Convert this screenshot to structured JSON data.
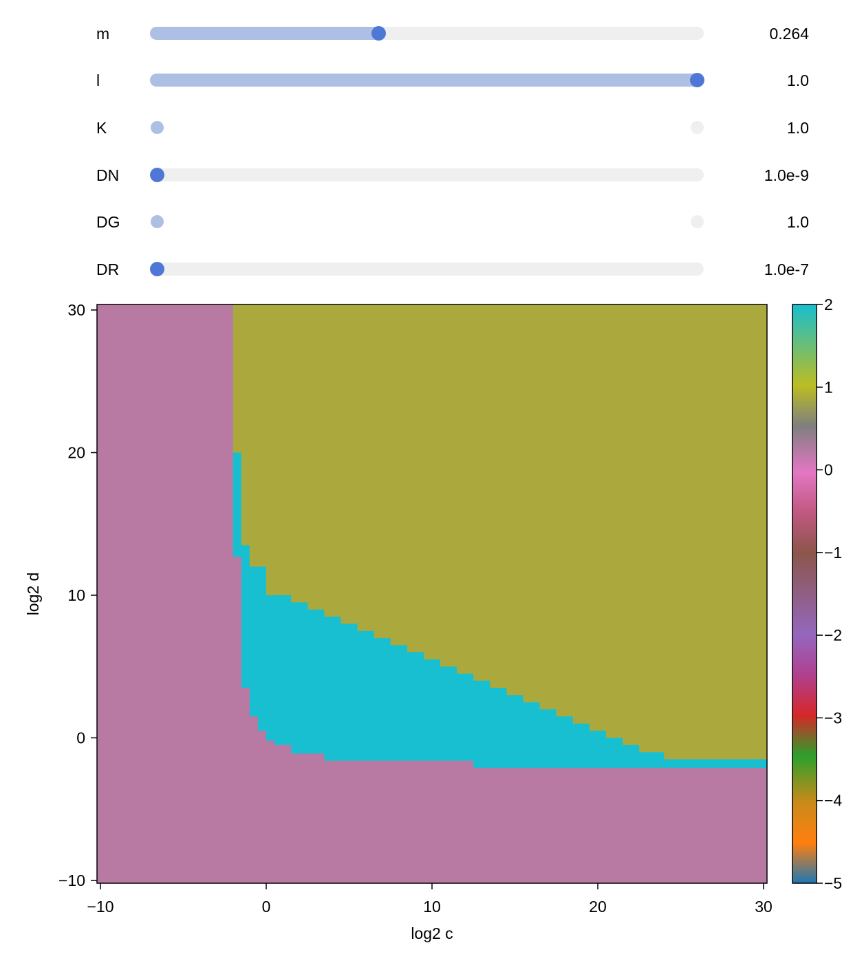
{
  "sliders": [
    {
      "label": "m",
      "value_text": "0.264",
      "fraction": 0.41,
      "state": "normal"
    },
    {
      "label": "l",
      "value_text": "1.0",
      "fraction": 1.0,
      "state": "normal"
    },
    {
      "label": "K",
      "value_text": "1.0",
      "fraction": 0.0,
      "state": "degenerate"
    },
    {
      "label": "DN",
      "value_text": "1.0e-9",
      "fraction": 0.0,
      "state": "normal"
    },
    {
      "label": "DG",
      "value_text": "1.0",
      "fraction": 0.0,
      "state": "degenerate"
    },
    {
      "label": "DR",
      "value_text": "1.0e-7",
      "fraction": 0.0,
      "state": "normal"
    }
  ],
  "colors": {
    "slider_track": "#efefef",
    "slider_fill": "#aebfe4",
    "slider_handle": "#4f77d6",
    "region_low": "#b87aa3",
    "region_mid": "#18bfd0",
    "region_high": "#aba93d"
  },
  "chart_data": {
    "type": "heatmap",
    "title": "",
    "xlabel": "log2 c",
    "ylabel": "log2 d",
    "xlim": [
      -10,
      30
    ],
    "ylim": [
      -10,
      30
    ],
    "xticks": [
      "−10",
      "0",
      "10",
      "20",
      "30"
    ],
    "yticks": [
      "−10",
      "0",
      "10",
      "20",
      "30"
    ],
    "colorbar": {
      "range": [
        -5,
        2
      ],
      "ticks": [
        "−5",
        "−4",
        "−3",
        "−2",
        "−1",
        "0",
        "1",
        "2"
      ]
    },
    "regions": [
      {
        "value": -0.4,
        "description": "pink region (left and bottom)"
      },
      {
        "value": 2.0,
        "description": "cyan band"
      },
      {
        "value": 1.0,
        "description": "olive region (upper right)"
      }
    ],
    "boundaries": {
      "mid_lower": [
        [
          -2,
          12.7
        ],
        [
          -1.5,
          3.5
        ],
        [
          -1,
          1.5
        ],
        [
          -0.5,
          0.5
        ],
        [
          0,
          -0.2
        ],
        [
          0.5,
          -0.5
        ],
        [
          1.5,
          -1.1
        ],
        [
          3.5,
          -1.6
        ],
        [
          12.5,
          -2.1
        ],
        [
          30,
          -2.1
        ]
      ],
      "mid_upper": [
        [
          -2,
          20
        ],
        [
          -1.5,
          13.5
        ],
        [
          -1,
          12
        ],
        [
          0,
          10
        ],
        [
          1.5,
          9.5
        ],
        [
          2.5,
          9.0
        ],
        [
          3.5,
          8.5
        ],
        [
          4.5,
          8.0
        ],
        [
          5.5,
          7.5
        ],
        [
          6.5,
          7.0
        ],
        [
          7.5,
          6.5
        ],
        [
          8.5,
          6.0
        ],
        [
          9.5,
          5.5
        ],
        [
          10.5,
          5.0
        ],
        [
          11.5,
          4.5
        ],
        [
          12.5,
          4.0
        ],
        [
          13.5,
          3.5
        ],
        [
          14.5,
          3.0
        ],
        [
          15.5,
          2.5
        ],
        [
          16.5,
          2.0
        ],
        [
          17.5,
          1.5
        ],
        [
          18.5,
          1.0
        ],
        [
          19.5,
          0.5
        ],
        [
          20.5,
          0.0
        ],
        [
          21.5,
          -0.5
        ],
        [
          22.5,
          -1.0
        ],
        [
          24.0,
          -1.5
        ],
        [
          28.5,
          -1.5
        ],
        [
          30,
          -1.5
        ]
      ],
      "high_left": -2
    }
  }
}
